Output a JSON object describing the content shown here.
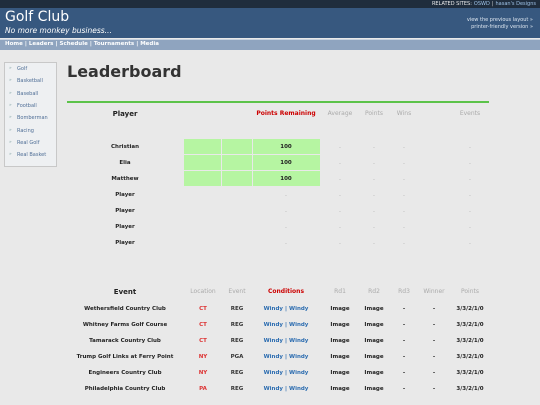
{
  "top_bar": {
    "label": "RELATED SITES:",
    "links": [
      "OSWD",
      "hasan's Designs"
    ],
    "separator": "|"
  },
  "header": {
    "title": "Golf Club",
    "tagline": "No more monkey business...",
    "links": [
      "view the previous layout »",
      "printer-friendly version »"
    ]
  },
  "nav": {
    "links": [
      "Home",
      "Leaders",
      "Schedule",
      "Tournaments",
      "Media"
    ],
    "separator": "|"
  },
  "sidebar": {
    "bullet": "»",
    "items": [
      "Golf",
      "Basketball",
      "Baseball",
      "Football",
      "Bomberman",
      "Racing",
      "Real Golf",
      "Real Basket"
    ]
  },
  "main": {
    "title": "Leaderboard",
    "leaderboard": {
      "headers": [
        "Player",
        "Points Remaining",
        "Average",
        "Points",
        "Wins",
        "Events"
      ],
      "rows": [
        {
          "player": "Christian",
          "highlight": true,
          "cells": [
            100,
            "-",
            "-",
            "-",
            "-"
          ]
        },
        {
          "player": "Elia",
          "highlight": true,
          "cells": [
            100,
            "-",
            "-",
            "-",
            "-"
          ]
        },
        {
          "player": "Matthew",
          "highlight": true,
          "cells": [
            100,
            "-",
            "-",
            "-",
            "-"
          ]
        },
        {
          "player": "Player",
          "highlight": false,
          "cells": [
            "-",
            "-",
            "-",
            "-",
            "-"
          ]
        },
        {
          "player": "Player",
          "highlight": false,
          "cells": [
            "-",
            "-",
            "-",
            "-",
            "-"
          ]
        },
        {
          "player": "Player",
          "highlight": false,
          "cells": [
            "-",
            "-",
            "-",
            "-",
            "-"
          ]
        },
        {
          "player": "Player",
          "highlight": false,
          "cells": [
            "-",
            "-",
            "-",
            "-",
            "-"
          ]
        }
      ]
    },
    "events": {
      "headers": [
        "Event",
        "Location",
        "Event",
        "Conditions",
        "Rd1",
        "Rd2",
        "Rd3",
        "Winner",
        "Points"
      ],
      "separator": "|",
      "rows": [
        {
          "name": "Wethersfield Country Club",
          "location": "CT",
          "event": "REG",
          "conditions": [
            "Windy",
            "Windy"
          ],
          "rest": [
            "Image",
            "Image",
            "-",
            "-",
            "3/3/2/1/0"
          ]
        },
        {
          "name": "Whitney Farms Golf Course",
          "location": "CT",
          "event": "REG",
          "conditions": [
            "Windy",
            "Windy"
          ],
          "rest": [
            "Image",
            "Image",
            "-",
            "-",
            "3/3/2/1/0"
          ]
        },
        {
          "name": "Tamarack Country Club",
          "location": "CT",
          "event": "REG",
          "conditions": [
            "Windy",
            "Windy"
          ],
          "rest": [
            "Image",
            "Image",
            "-",
            "-",
            "3/3/2/1/0"
          ]
        },
        {
          "name": "Trump Golf Links at Ferry Point",
          "location": "NY",
          "event": "PGA",
          "conditions": [
            "Windy",
            "Windy"
          ],
          "rest": [
            "Image",
            "Image",
            "-",
            "-",
            "3/3/2/1/0"
          ]
        },
        {
          "name": "Engineers Country Club",
          "location": "NY",
          "event": "REG",
          "conditions": [
            "Windy",
            "Windy"
          ],
          "rest": [
            "Image",
            "Image",
            "-",
            "-",
            "3/3/2/1/0"
          ]
        },
        {
          "name": "Philadelphia Country Club",
          "location": "PA",
          "event": "REG",
          "conditions": [
            "Windy",
            "Windy"
          ],
          "rest": [
            "Image",
            "Image",
            "-",
            "-",
            "3/3/2/1/0"
          ]
        }
      ]
    }
  }
}
